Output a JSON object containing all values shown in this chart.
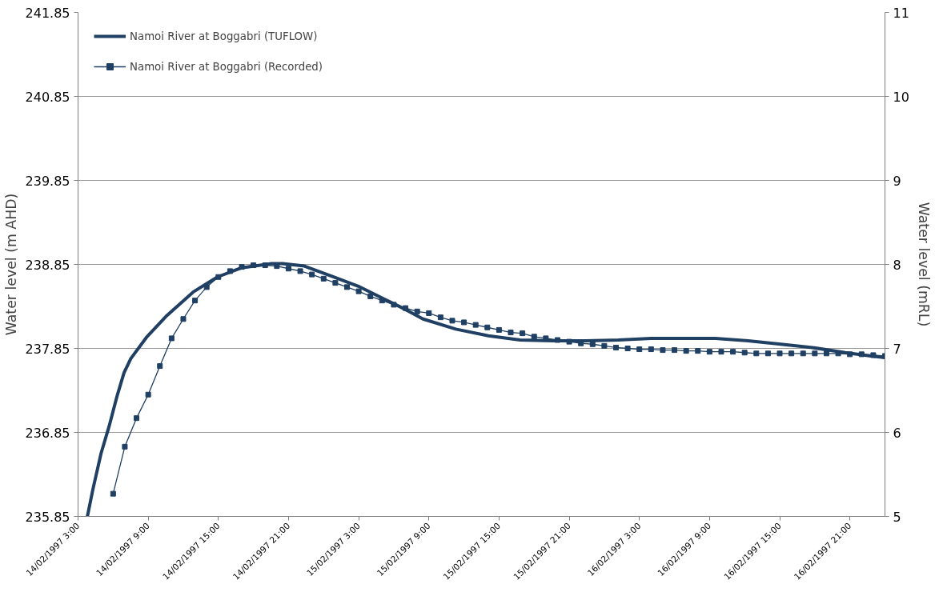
{
  "chart_data": {
    "type": "line",
    "ylabel": "Water level (m AHD)",
    "y2label": "Water level (mRL)",
    "xlim": [
      "1997-02-14T03:00",
      "1997-02-17T00:00"
    ],
    "ylim": [
      235.85,
      241.85
    ],
    "y2lim": [
      5,
      11
    ],
    "xticks": [
      {
        "value": "1997-02-14T03:00",
        "label": "14/02/1997 3:00"
      },
      {
        "value": "1997-02-14T09:00",
        "label": "14/02/1997 9:00"
      },
      {
        "value": "1997-02-14T15:00",
        "label": "14/02/1997 15:00"
      },
      {
        "value": "1997-02-14T21:00",
        "label": "14/02/1997 21:00"
      },
      {
        "value": "1997-02-15T03:00",
        "label": "15/02/1997 3:00"
      },
      {
        "value": "1997-02-15T09:00",
        "label": "15/02/1997 9:00"
      },
      {
        "value": "1997-02-15T15:00",
        "label": "15/02/1997 15:00"
      },
      {
        "value": "1997-02-15T21:00",
        "label": "15/02/1997 21:00"
      },
      {
        "value": "1997-02-16T03:00",
        "label": "16/02/1997 3:00"
      },
      {
        "value": "1997-02-16T09:00",
        "label": "16/02/1997 9:00"
      },
      {
        "value": "1997-02-16T15:00",
        "label": "16/02/1997 15:00"
      },
      {
        "value": "1997-02-16T21:00",
        "label": "16/02/1997 21:00"
      }
    ],
    "yticks": [
      235.85,
      236.85,
      237.85,
      238.85,
      239.85,
      240.85,
      241.85
    ],
    "y2ticks": [
      5,
      6,
      7,
      8,
      9,
      10,
      11
    ],
    "grid": "y",
    "legend": "top left",
    "series": [
      {
        "name": "Namoi River at Boggabri (TUFLOW)",
        "color": "#1f3f63",
        "marker": "none",
        "x": [
          "1997-02-14T03:48",
          "1997-02-14T04:16",
          "1997-02-14T04:58",
          "1997-02-14T05:39",
          "1997-02-14T06:21",
          "1997-02-14T06:56",
          "1997-02-14T07:31",
          "1997-02-14T08:54",
          "1997-02-14T10:31",
          "1997-02-14T12:50",
          "1997-02-14T14:55",
          "1997-02-14T17:00",
          "1997-02-14T19:33",
          "1997-02-14T20:30",
          "1997-02-14T22:21",
          "1997-02-15T00:40",
          "1997-02-15T02:58",
          "1997-02-15T05:00",
          "1997-02-15T06:54",
          "1997-02-15T08:30",
          "1997-02-15T11:18",
          "1997-02-15T14:06",
          "1997-02-15T16:48",
          "1997-02-15T19:36",
          "1997-02-15T22:24",
          "1997-02-16T01:12",
          "1997-02-16T04:00",
          "1997-02-16T06:42",
          "1997-02-16T09:30",
          "1997-02-16T12:18",
          "1997-02-16T15:06",
          "1997-02-16T17:48",
          "1997-02-16T20:36",
          "1997-02-16T22:48",
          "1997-02-17T00:00"
        ],
        "values": [
          235.85,
          236.17,
          236.6,
          236.92,
          237.29,
          237.56,
          237.73,
          237.99,
          238.23,
          238.52,
          238.7,
          238.81,
          238.86,
          238.86,
          238.83,
          238.71,
          238.59,
          238.45,
          238.32,
          238.2,
          238.08,
          238.0,
          237.95,
          237.94,
          237.94,
          237.95,
          237.97,
          237.97,
          237.97,
          237.94,
          237.9,
          237.86,
          237.8,
          237.76,
          237.74
        ]
      },
      {
        "name": "Namoi River at Boggabri (Recorded)",
        "color": "#1f3f63",
        "marker": "square",
        "x": [
          "1997-02-14T06:00",
          "1997-02-14T07:00",
          "1997-02-14T08:00",
          "1997-02-14T09:00",
          "1997-02-14T10:00",
          "1997-02-14T11:00",
          "1997-02-14T12:00",
          "1997-02-14T13:00",
          "1997-02-14T14:00",
          "1997-02-14T15:00",
          "1997-02-14T16:00",
          "1997-02-14T17:00",
          "1997-02-14T18:00",
          "1997-02-14T19:00",
          "1997-02-14T20:00",
          "1997-02-14T21:00",
          "1997-02-14T22:00",
          "1997-02-14T23:00",
          "1997-02-15T00:00",
          "1997-02-15T01:00",
          "1997-02-15T02:00",
          "1997-02-15T03:00",
          "1997-02-15T04:00",
          "1997-02-15T05:00",
          "1997-02-15T06:00",
          "1997-02-15T07:00",
          "1997-02-15T08:00",
          "1997-02-15T09:00",
          "1997-02-15T10:00",
          "1997-02-15T11:00",
          "1997-02-15T12:00",
          "1997-02-15T13:00",
          "1997-02-15T14:00",
          "1997-02-15T15:00",
          "1997-02-15T16:00",
          "1997-02-15T17:00",
          "1997-02-15T18:00",
          "1997-02-15T19:00",
          "1997-02-15T20:00",
          "1997-02-15T21:00",
          "1997-02-15T22:00",
          "1997-02-15T23:00",
          "1997-02-16T00:00",
          "1997-02-16T01:00",
          "1997-02-16T02:00",
          "1997-02-16T03:00",
          "1997-02-16T04:00",
          "1997-02-16T05:00",
          "1997-02-16T06:00",
          "1997-02-16T07:00",
          "1997-02-16T08:00",
          "1997-02-16T09:00",
          "1997-02-16T10:00",
          "1997-02-16T11:00",
          "1997-02-16T12:00",
          "1997-02-16T13:00",
          "1997-02-16T14:00",
          "1997-02-16T15:00",
          "1997-02-16T16:00",
          "1997-02-16T17:00",
          "1997-02-16T18:00",
          "1997-02-16T19:00",
          "1997-02-16T20:00",
          "1997-02-16T21:00",
          "1997-02-16T22:00",
          "1997-02-16T23:00",
          "1997-02-17T00:00"
        ],
        "values": [
          236.12,
          236.68,
          237.02,
          237.3,
          237.64,
          237.97,
          238.2,
          238.42,
          238.58,
          238.7,
          238.77,
          238.82,
          238.84,
          238.84,
          238.83,
          238.8,
          238.77,
          238.73,
          238.68,
          238.63,
          238.58,
          238.53,
          238.47,
          238.42,
          238.37,
          238.33,
          238.29,
          238.27,
          238.22,
          238.18,
          238.16,
          238.13,
          238.1,
          238.07,
          238.04,
          238.03,
          237.99,
          237.97,
          237.95,
          237.93,
          237.91,
          237.9,
          237.88,
          237.86,
          237.85,
          237.84,
          237.84,
          237.83,
          237.83,
          237.82,
          237.82,
          237.81,
          237.81,
          237.81,
          237.8,
          237.79,
          237.79,
          237.79,
          237.79,
          237.79,
          237.79,
          237.79,
          237.79,
          237.78,
          237.78,
          237.77,
          237.76
        ]
      }
    ]
  }
}
